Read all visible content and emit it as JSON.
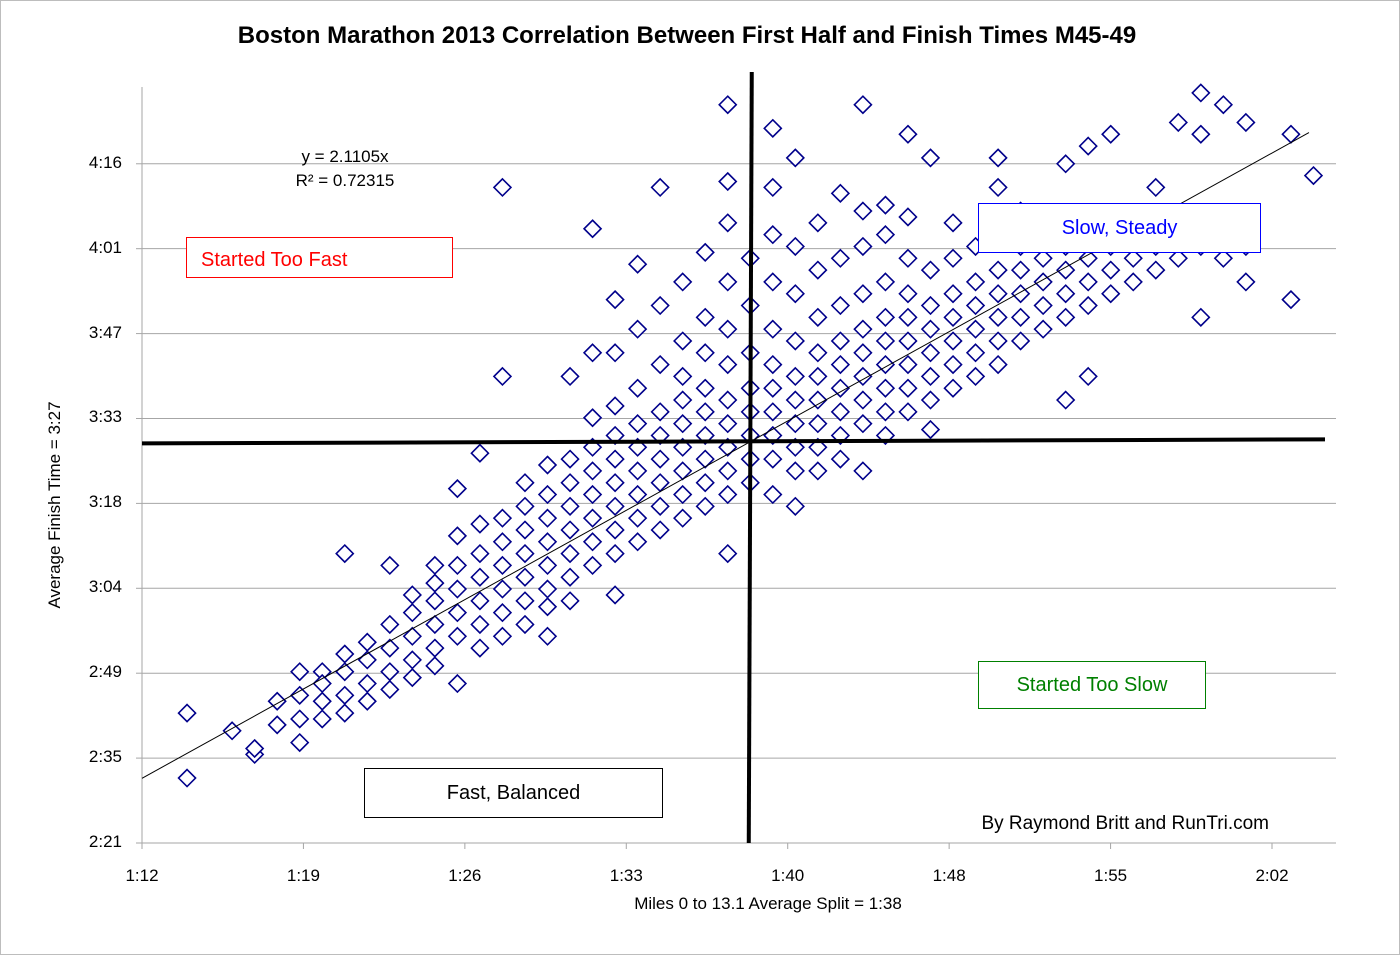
{
  "chart_data": {
    "type": "scatter",
    "title": "Boston Marathon 2013 Correlation Between First Half and Finish Times M45-49",
    "xlabel": "Miles 0 to 13.1 Average Split = 1:38",
    "ylabel": "Average Finish Time = 3:27",
    "xlim": [
      "1:12",
      "2:05"
    ],
    "ylim": [
      "2:21",
      "4:29"
    ],
    "x_ticks": [
      "1:12",
      "1:19",
      "1:26",
      "1:33",
      "1:40",
      "1:48",
      "1:55",
      "2:02"
    ],
    "y_ticks": [
      "2:21",
      "2:35",
      "2:49",
      "3:04",
      "3:18",
      "3:33",
      "3:47",
      "4:01",
      "4:16"
    ],
    "grid": "horizontal",
    "marker": "diamond",
    "marker_color": "#00008B",
    "trendline": {
      "equation": "y = 2.1105x",
      "r_squared": "R² = 0.72315",
      "slope": 2.1105
    },
    "quadrant_lines": {
      "vertical_x": "1:39",
      "horizontal_y": "3:29"
    },
    "annotations": {
      "top_left": {
        "text": "Started Too Fast",
        "color": "#FF0000"
      },
      "top_right": {
        "text": "Slow, Steady",
        "color": "#0000FF"
      },
      "bottom_right": {
        "text": "Started Too Slow",
        "color": "#008000"
      },
      "bottom_left": {
        "text": "Fast, Balanced",
        "color": "#000000"
      },
      "credit": "By Raymond Britt and RunTri.com"
    },
    "points_by_x": [
      {
        "x": "1:14",
        "y": [
          "2:43",
          "2:32"
        ]
      },
      {
        "x": "1:16",
        "y": [
          "2:40"
        ]
      },
      {
        "x": "1:17",
        "y": [
          "2:36",
          "2:37"
        ]
      },
      {
        "x": "1:18",
        "y": [
          "2:45",
          "2:41"
        ]
      },
      {
        "x": "1:19",
        "y": [
          "2:50",
          "2:42",
          "2:38",
          "2:46"
        ]
      },
      {
        "x": "1:20",
        "y": [
          "2:50",
          "2:45",
          "2:48",
          "2:42"
        ]
      },
      {
        "x": "1:21",
        "y": [
          "3:10",
          "2:46",
          "2:50",
          "2:53",
          "2:43"
        ]
      },
      {
        "x": "1:22",
        "y": [
          "2:48",
          "2:52",
          "2:55",
          "2:45"
        ]
      },
      {
        "x": "1:23",
        "y": [
          "3:08",
          "2:50",
          "2:54",
          "2:58",
          "2:47"
        ]
      },
      {
        "x": "1:24",
        "y": [
          "2:52",
          "2:56",
          "3:00",
          "2:49",
          "3:03"
        ]
      },
      {
        "x": "1:25",
        "y": [
          "2:54",
          "2:58",
          "3:02",
          "3:05",
          "2:51",
          "3:08"
        ]
      },
      {
        "x": "1:26",
        "y": [
          "2:48",
          "2:56",
          "3:00",
          "3:04",
          "3:08",
          "3:21",
          "3:13"
        ]
      },
      {
        "x": "1:27",
        "y": [
          "2:58",
          "3:02",
          "3:06",
          "3:10",
          "3:27",
          "3:15",
          "2:54"
        ]
      },
      {
        "x": "1:28",
        "y": [
          "4:12",
          "3:40",
          "3:00",
          "3:04",
          "3:08",
          "3:12",
          "3:16",
          "2:56"
        ]
      },
      {
        "x": "1:29",
        "y": [
          "3:02",
          "3:06",
          "3:10",
          "3:14",
          "3:18",
          "3:22",
          "2:58"
        ]
      },
      {
        "x": "1:30",
        "y": [
          "2:56",
          "3:04",
          "3:08",
          "3:12",
          "3:16",
          "3:20",
          "3:25",
          "3:01"
        ]
      },
      {
        "x": "1:31",
        "y": [
          "3:06",
          "3:10",
          "3:14",
          "3:18",
          "3:22",
          "3:26",
          "3:40",
          "3:02"
        ]
      },
      {
        "x": "1:32",
        "y": [
          "4:05",
          "3:44",
          "3:08",
          "3:12",
          "3:16",
          "3:20",
          "3:24",
          "3:28",
          "3:33"
        ]
      },
      {
        "x": "1:33",
        "y": [
          "3:03",
          "3:10",
          "3:14",
          "3:18",
          "3:22",
          "3:26",
          "3:30",
          "3:35",
          "3:53",
          "3:44"
        ]
      },
      {
        "x": "1:34",
        "y": [
          "3:12",
          "3:16",
          "3:20",
          "3:24",
          "3:28",
          "3:32",
          "3:38",
          "3:59",
          "3:48"
        ]
      },
      {
        "x": "1:35",
        "y": [
          "4:12",
          "3:14",
          "3:18",
          "3:22",
          "3:26",
          "3:30",
          "3:34",
          "3:42",
          "3:52"
        ]
      },
      {
        "x": "1:36",
        "y": [
          "3:16",
          "3:20",
          "3:24",
          "3:28",
          "3:32",
          "3:36",
          "3:40",
          "3:46",
          "3:56"
        ]
      },
      {
        "x": "1:37",
        "y": [
          "4:01",
          "3:18",
          "3:22",
          "3:26",
          "3:30",
          "3:34",
          "3:38",
          "3:44",
          "3:50"
        ]
      },
      {
        "x": "1:38",
        "y": [
          "4:26",
          "4:13",
          "4:06",
          "3:10",
          "3:20",
          "3:24",
          "3:28",
          "3:32",
          "3:36",
          "3:42",
          "3:48",
          "3:56"
        ]
      },
      {
        "x": "1:39",
        "y": [
          "3:22",
          "3:26",
          "3:30",
          "3:34",
          "3:38",
          "3:44",
          "3:52",
          "4:00"
        ]
      },
      {
        "x": "1:40",
        "y": [
          "4:22",
          "4:12",
          "3:20",
          "3:26",
          "3:30",
          "3:34",
          "3:38",
          "3:42",
          "3:48",
          "3:56",
          "4:04"
        ]
      },
      {
        "x": "1:41",
        "y": [
          "4:17",
          "3:18",
          "3:24",
          "3:28",
          "3:32",
          "3:36",
          "3:40",
          "3:46",
          "3:54",
          "4:02"
        ]
      },
      {
        "x": "1:42",
        "y": [
          "3:24",
          "3:28",
          "3:32",
          "3:36",
          "3:40",
          "3:44",
          "3:50",
          "3:58",
          "4:06"
        ]
      },
      {
        "x": "1:43",
        "y": [
          "4:11",
          "3:26",
          "3:30",
          "3:34",
          "3:38",
          "3:42",
          "3:46",
          "3:52",
          "4:00"
        ]
      },
      {
        "x": "1:44",
        "y": [
          "4:26",
          "3:24",
          "3:32",
          "3:36",
          "3:40",
          "3:44",
          "3:48",
          "3:54",
          "4:02",
          "4:08"
        ]
      },
      {
        "x": "1:45",
        "y": [
          "4:09",
          "3:30",
          "3:34",
          "3:38",
          "3:42",
          "3:46",
          "3:50",
          "3:56",
          "4:04"
        ]
      },
      {
        "x": "1:46",
        "y": [
          "4:21",
          "3:34",
          "3:38",
          "3:42",
          "3:46",
          "3:50",
          "3:54",
          "4:00",
          "4:07"
        ]
      },
      {
        "x": "1:47",
        "y": [
          "4:17",
          "3:31",
          "3:36",
          "3:40",
          "3:44",
          "3:48",
          "3:52",
          "3:58"
        ]
      },
      {
        "x": "1:48",
        "y": [
          "3:38",
          "3:42",
          "3:46",
          "3:50",
          "3:54",
          "4:00",
          "4:06"
        ]
      },
      {
        "x": "1:49",
        "y": [
          "3:40",
          "3:44",
          "3:48",
          "3:52",
          "3:56",
          "4:02"
        ]
      },
      {
        "x": "1:50",
        "y": [
          "4:17",
          "4:12",
          "3:42",
          "3:46",
          "3:50",
          "3:54",
          "3:58",
          "4:04"
        ]
      },
      {
        "x": "1:51",
        "y": [
          "3:46",
          "3:50",
          "3:54",
          "3:58",
          "4:02",
          "4:08"
        ]
      },
      {
        "x": "1:52",
        "y": [
          "3:48",
          "3:52",
          "3:56",
          "4:00",
          "4:04"
        ]
      },
      {
        "x": "1:53",
        "y": [
          "4:16",
          "3:36",
          "3:50",
          "3:54",
          "3:58",
          "4:02",
          "4:06"
        ]
      },
      {
        "x": "1:54",
        "y": [
          "4:19",
          "3:40",
          "3:52",
          "3:56",
          "4:00",
          "4:04"
        ]
      },
      {
        "x": "1:55",
        "y": [
          "4:21",
          "3:54",
          "3:58",
          "4:02",
          "4:06"
        ]
      },
      {
        "x": "1:56",
        "y": [
          "3:56",
          "4:00",
          "4:04"
        ]
      },
      {
        "x": "1:57",
        "y": [
          "4:12",
          "3:58",
          "4:02",
          "4:06"
        ]
      },
      {
        "x": "1:58",
        "y": [
          "4:23",
          "4:00",
          "4:04"
        ]
      },
      {
        "x": "1:59",
        "y": [
          "4:28",
          "4:21",
          "3:50",
          "4:02",
          "4:06"
        ]
      },
      {
        "x": "2:00",
        "y": [
          "4:26",
          "4:00",
          "4:04"
        ]
      },
      {
        "x": "2:01",
        "y": [
          "4:23",
          "3:56",
          "4:02"
        ]
      },
      {
        "x": "2:03",
        "y": [
          "4:21",
          "3:53"
        ]
      },
      {
        "x": "2:04",
        "y": [
          "4:14"
        ]
      }
    ]
  }
}
